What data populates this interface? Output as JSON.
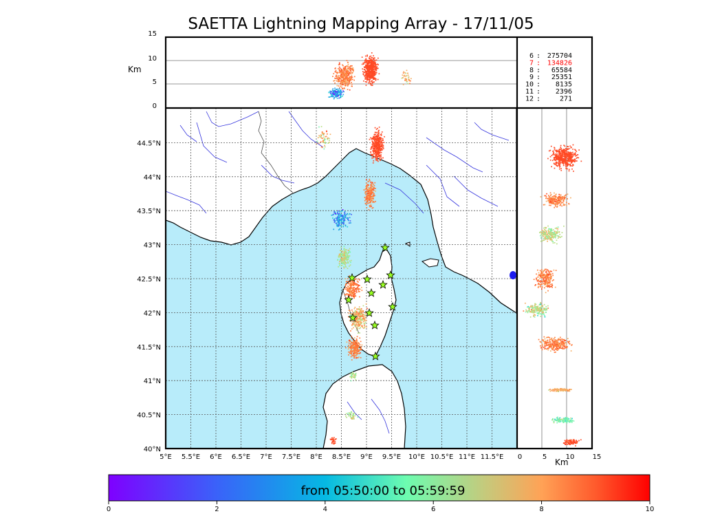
{
  "title": "SAETTA Lightning Mapping Array - 17/11/05",
  "colors": {
    "sea": "#b8ecfa",
    "land": "#ffffff",
    "river": "#3333dd",
    "grid": "#555555",
    "highlight_count": "#ff0000"
  },
  "top_panel": {
    "ylabel": "Km",
    "yticks": [
      "0",
      "5",
      "10",
      "15"
    ]
  },
  "right_panel": {
    "xlabel": "Km",
    "xticks": [
      "0",
      "5",
      "10",
      "15"
    ]
  },
  "map": {
    "lon_ticks": [
      "5°E",
      "5.5°E",
      "6°E",
      "6.5°E",
      "7°E",
      "7.5°E",
      "8°E",
      "8.5°E",
      "9°E",
      "9.5°E",
      "10°E",
      "10.5°E",
      "11°E",
      "11.5°E"
    ],
    "lat_ticks": [
      "40°N",
      "40.5°N",
      "41°N",
      "41.5°N",
      "42°N",
      "42.5°N",
      "43°N",
      "43.5°N",
      "44°N",
      "44.5°N"
    ],
    "stations_marker": "star"
  },
  "counts": [
    {
      "label": "6",
      "value": "275704",
      "highlight": false
    },
    {
      "label": "7",
      "value": "134826",
      "highlight": true
    },
    {
      "label": "8",
      "value": "65584",
      "highlight": false
    },
    {
      "label": "9",
      "value": "25351",
      "highlight": false
    },
    {
      "label": "10",
      "value": "8135",
      "highlight": false
    },
    {
      "label": "11",
      "value": "2396",
      "highlight": false
    },
    {
      "label": "12",
      "value": "271",
      "highlight": false
    }
  ],
  "colorbar": {
    "label": "from 05:50:00 to 05:59:59",
    "ticks": [
      "0",
      "2",
      "4",
      "6",
      "8",
      "10"
    ],
    "range": [
      0,
      10
    ],
    "colormap": "rainbow"
  }
}
